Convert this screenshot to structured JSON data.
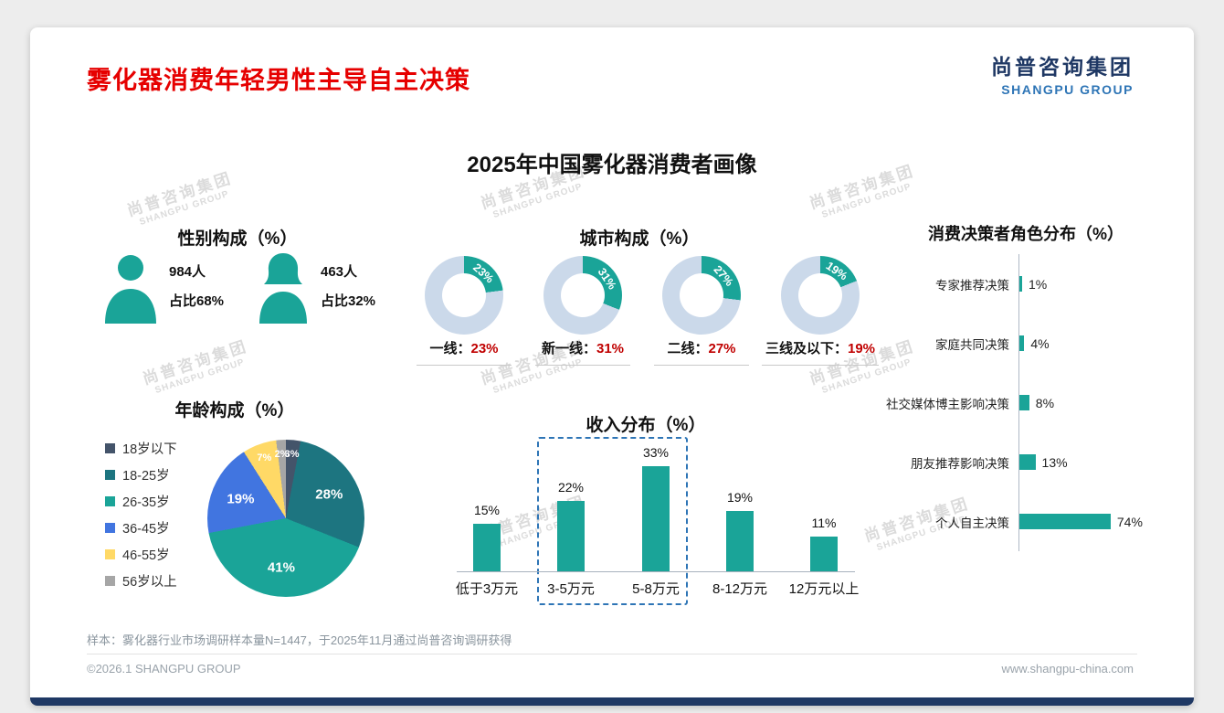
{
  "colors": {
    "accent_teal": "#1AA498",
    "donut_rest": "#CBD9EA",
    "title_red": "#E60000",
    "value_red": "#C00000",
    "navy": "#1F3864",
    "logo_blue": "#2E75B6",
    "dashed_box_blue": "#2E75B6",
    "pie": [
      "#44546A",
      "#1D7580",
      "#1AA498",
      "#4175E0",
      "#FFD966",
      "#A6A6A6"
    ]
  },
  "header": {
    "title": "雾化器消费年轻男性主导自主决策",
    "logo_cn": "尚普咨询集团",
    "logo_en": "SHANGPU GROUP"
  },
  "main_title": "2025年中国雾化器消费者画像",
  "watermark": {
    "cn": "尚普咨询集团",
    "en": "SHANGPU GROUP"
  },
  "gender": {
    "title": "性别构成（%）",
    "male_count": "984人",
    "male_share": "占比68%",
    "female_count": "463人",
    "female_share": "占比32%"
  },
  "city": {
    "title": "城市构成（%）",
    "items": [
      {
        "label": "一线",
        "value": 23,
        "pct": "23%"
      },
      {
        "label": "新一线",
        "value": 31,
        "pct": "31%"
      },
      {
        "label": "二线",
        "value": 27,
        "pct": "27%"
      },
      {
        "label": "三线及以下",
        "value": 19,
        "pct": "19%"
      }
    ]
  },
  "decision": {
    "title": "消费决策者角色分布（%）",
    "items": [
      {
        "label": "专家推荐决策",
        "value": 1,
        "pct": "1%"
      },
      {
        "label": "家庭共同决策",
        "value": 4,
        "pct": "4%"
      },
      {
        "label": "社交媒体博主影响决策",
        "value": 8,
        "pct": "8%"
      },
      {
        "label": "朋友推荐影响决策",
        "value": 13,
        "pct": "13%"
      },
      {
        "label": "个人自主决策",
        "value": 74,
        "pct": "74%"
      }
    ]
  },
  "age": {
    "title": "年龄构成（%）",
    "items": [
      {
        "label": "18岁以下",
        "value": 3,
        "pct": "3%"
      },
      {
        "label": "18-25岁",
        "value": 28,
        "pct": "28%"
      },
      {
        "label": "26-35岁",
        "value": 41,
        "pct": "41%"
      },
      {
        "label": "36-45岁",
        "value": 19,
        "pct": "19%"
      },
      {
        "label": "46-55岁",
        "value": 7,
        "pct": "7%"
      },
      {
        "label": "56岁以上",
        "value": 2,
        "pct": "2%"
      }
    ]
  },
  "income": {
    "title": "收入分布（%）",
    "items": [
      {
        "label": "低于3万元",
        "value": 15,
        "pct": "15%"
      },
      {
        "label": "3-5万元",
        "value": 22,
        "pct": "22%"
      },
      {
        "label": "5-8万元",
        "value": 33,
        "pct": "33%"
      },
      {
        "label": "8-12万元",
        "value": 19,
        "pct": "19%"
      },
      {
        "label": "12万元以上",
        "value": 11,
        "pct": "11%"
      }
    ]
  },
  "footer": {
    "note": "样本：雾化器行业市场调研样本量N=1447，于2025年11月通过尚普咨询调研获得",
    "left": "©2026.1 SHANGPU GROUP",
    "right": "www.shangpu-china.com"
  },
  "chart_data": [
    {
      "type": "pie",
      "variant": "donut-set",
      "title": "城市构成（%）",
      "categories": [
        "一线",
        "新一线",
        "二线",
        "三线及以下"
      ],
      "values": [
        23,
        31,
        27,
        19
      ],
      "unit": "%",
      "legend_position": "below-each-donut"
    },
    {
      "type": "pie",
      "title": "年龄构成（%）",
      "categories": [
        "18岁以下",
        "18-25岁",
        "26-35岁",
        "36-45岁",
        "46-55岁",
        "56岁以上"
      ],
      "values": [
        3,
        28,
        41,
        19,
        7,
        2
      ],
      "unit": "%",
      "legend_position": "left"
    },
    {
      "type": "bar",
      "orientation": "vertical",
      "title": "收入分布（%）",
      "categories": [
        "低于3万元",
        "3-5万元",
        "5-8万元",
        "8-12万元",
        "12万元以上"
      ],
      "values": [
        15,
        22,
        33,
        19,
        11
      ],
      "unit": "%",
      "ylim": [
        0,
        35
      ],
      "highlighted_categories": [
        "3-5万元",
        "5-8万元"
      ]
    },
    {
      "type": "bar",
      "orientation": "horizontal",
      "title": "消费决策者角色分布（%）",
      "categories": [
        "专家推荐决策",
        "家庭共同决策",
        "社交媒体博主影响决策",
        "朋友推荐影响决策",
        "个人自主决策"
      ],
      "values": [
        1,
        4,
        8,
        13,
        74
      ],
      "unit": "%",
      "xlim": [
        0,
        80
      ]
    },
    {
      "type": "table",
      "title": "性别构成（%）",
      "categories": [
        "男性",
        "女性"
      ],
      "counts": [
        984,
        463
      ],
      "values": [
        68,
        32
      ],
      "unit": "%"
    }
  ]
}
